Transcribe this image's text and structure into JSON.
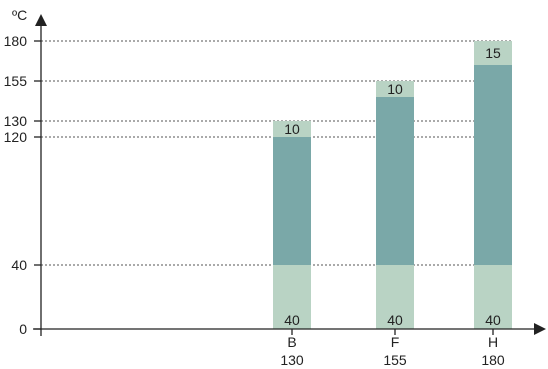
{
  "chart_data": {
    "type": "bar",
    "stacked": true,
    "ylabel": "ºC",
    "ylim": [
      0,
      180
    ],
    "yticks": [
      0,
      40,
      120,
      130,
      155,
      180
    ],
    "dashed_gridlines_at": [
      40,
      120,
      130,
      155,
      180
    ],
    "categories": [
      {
        "name": "B",
        "sublabel": "130"
      },
      {
        "name": "F",
        "sublabel": "155"
      },
      {
        "name": "H",
        "sublabel": "180"
      }
    ],
    "bars": [
      {
        "segments": [
          {
            "from": 0,
            "to": 40,
            "label": "40",
            "tone": "light"
          },
          {
            "from": 40,
            "to": 120,
            "label": "",
            "tone": "dark"
          },
          {
            "from": 120,
            "to": 130,
            "label": "10",
            "tone": "light"
          }
        ]
      },
      {
        "segments": [
          {
            "from": 0,
            "to": 40,
            "label": "40",
            "tone": "light"
          },
          {
            "from": 40,
            "to": 145,
            "label": "",
            "tone": "dark"
          },
          {
            "from": 145,
            "to": 155,
            "label": "10",
            "tone": "light"
          }
        ]
      },
      {
        "segments": [
          {
            "from": 0,
            "to": 40,
            "label": "40",
            "tone": "light"
          },
          {
            "from": 40,
            "to": 165,
            "label": "",
            "tone": "dark"
          },
          {
            "from": 165,
            "to": 180,
            "label": "15",
            "tone": "light"
          }
        ]
      }
    ],
    "colors": {
      "light": "#b9d3c4",
      "dark": "#7aa8a8",
      "axis": "#222222",
      "grid": "#555555"
    }
  }
}
